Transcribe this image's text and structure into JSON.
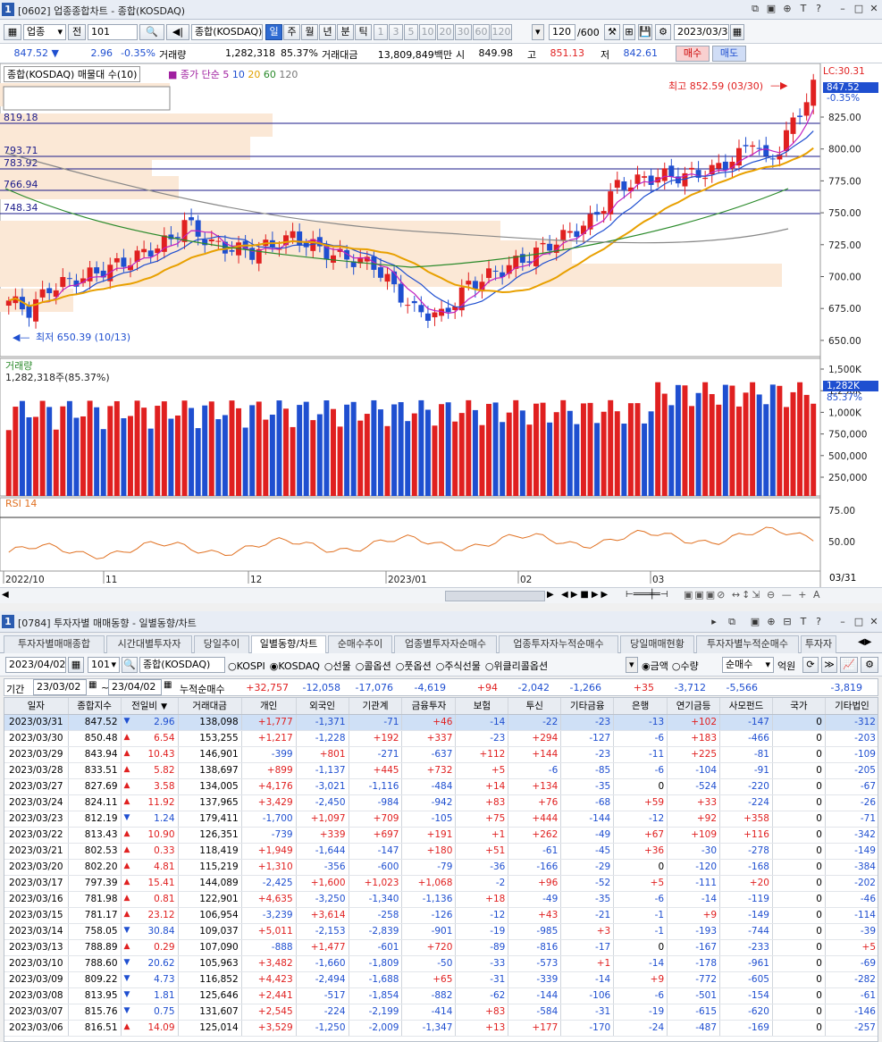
{
  "win1": {
    "num": "1",
    "title": "[0602] 업종종합차트 - 종합(KOSDAQ)"
  },
  "toolbar1": {
    "market": "업종",
    "all": "전",
    "code": "101",
    "name": "종합(KOSDAQ)",
    "periods": [
      "일",
      "주",
      "월",
      "년",
      "분",
      "틱"
    ],
    "nums": [
      "1",
      "3",
      "5",
      "10",
      "20",
      "30",
      "60",
      "120"
    ],
    "count": "120",
    "max": "/600",
    "date": "2023/03/31"
  },
  "quote": {
    "price": "847.52",
    "arrow": "▼",
    "change": "2.96",
    "pct": "-0.35%",
    "vol_label": "거래량",
    "volume": "1,282,318",
    "vol_pct": "85.37%",
    "amt_label": "거래대금",
    "amount": "13,809,849백만",
    "open_label": "시",
    "open": "849.98",
    "high_label": "고",
    "high": "851.13",
    "low_label": "저",
    "low": "842.61",
    "buy": "매수",
    "sell": "매도"
  },
  "chart": {
    "legend_main": "종합(KOSDAQ) 매물대 수(10)",
    "legend_ma": "종가 단순",
    "ma": [
      "5",
      "10",
      "20",
      "60",
      "120"
    ],
    "high_note": "최고 852.59 (03/30)",
    "low_note": "최저 650.39 (10/13)",
    "lc": "LC:30.31",
    "hc": "HC:5.58",
    "cur": "847.52",
    "cur_pct": "-0.35%",
    "levels": [
      "819.18",
      "793.71",
      "783.92",
      "766.94",
      "748.34"
    ],
    "yticks": [
      "825.00",
      "800.00",
      "775.00",
      "750.00",
      "725.00",
      "700.00",
      "675.00",
      "650.00"
    ],
    "vol_legend": "거래량",
    "vol_info": "1,282,318주(85.37%)",
    "vol_ticks": [
      "1,500K",
      "1,250K",
      "1,000K",
      "750,000",
      "500,000",
      "250,000"
    ],
    "vol_cur": "1,282K",
    "vol_pct": "85.37%",
    "rsi_legend": "RSI 14",
    "rsi_ticks": [
      "75.00",
      "50.00"
    ],
    "xlabels": [
      "2022/10",
      "11",
      "12",
      "2023/01",
      "02",
      "03"
    ],
    "xlast": "03/31"
  },
  "win2": {
    "num": "1",
    "title": "[0784] 투자자별 매매동향 - 일별동향/차트"
  },
  "tabs": [
    "투자자별매매종합",
    "시간대별투자자",
    "당일추이",
    "일별동향/차트",
    "순매수추이",
    "업종별투자자순매수",
    "업종투자자누적순매수",
    "당일매매현황",
    "투자자별누적순매수",
    "투자자"
  ],
  "filter": {
    "date": "2023/04/02",
    "code": "101",
    "name": "종합(KOSDAQ)",
    "markets": [
      "KOSPI",
      "KOSDAQ",
      "선물",
      "콜옵션",
      "풋옵션",
      "주식선물",
      "위클리콜옵션"
    ],
    "units": [
      "금액",
      "수량"
    ],
    "mode": "순매수",
    "unit": "억원"
  },
  "period": {
    "label": "기간",
    "from": "23/03/02",
    "to": "23/04/02",
    "sum_label": "누적순매수",
    "sums": [
      "+32,757",
      "-12,058",
      "-17,076",
      "-4,619",
      "+94",
      "-2,042",
      "-1,266",
      "+35",
      "-3,712",
      "-5,566",
      "",
      "-3,819"
    ]
  },
  "columns": [
    "일자",
    "종합지수",
    "전일비",
    "거래대금",
    "개인",
    "외국인",
    "기관계",
    "금융투자",
    "보험",
    "투신",
    "기타금융",
    "은행",
    "연기금등",
    "사모펀드",
    "국가",
    "기타법인"
  ],
  "rows": [
    [
      "2023/03/31",
      "847.52",
      "dn",
      "2.96",
      "138,098",
      "+1,777",
      "-1,371",
      "-71",
      "+46",
      "-14",
      "-22",
      "-23",
      "-13",
      "+102",
      "-147",
      "0",
      "-312"
    ],
    [
      "2023/03/30",
      "850.48",
      "up",
      "6.54",
      "153,255",
      "+1,217",
      "-1,228",
      "+192",
      "+337",
      "-23",
      "+294",
      "-127",
      "-6",
      "+183",
      "-466",
      "0",
      "-203"
    ],
    [
      "2023/03/29",
      "843.94",
      "up",
      "10.43",
      "146,901",
      "-399",
      "+801",
      "-271",
      "-637",
      "+112",
      "+144",
      "-23",
      "-11",
      "+225",
      "-81",
      "0",
      "-109"
    ],
    [
      "2023/03/28",
      "833.51",
      "up",
      "5.82",
      "138,697",
      "+899",
      "-1,137",
      "+445",
      "+732",
      "+5",
      "-6",
      "-85",
      "-6",
      "-104",
      "-91",
      "0",
      "-205"
    ],
    [
      "2023/03/27",
      "827.69",
      "up",
      "3.58",
      "134,005",
      "+4,176",
      "-3,021",
      "-1,116",
      "-484",
      "+14",
      "+134",
      "-35",
      "0",
      "-524",
      "-220",
      "0",
      "-67"
    ],
    [
      "2023/03/24",
      "824.11",
      "up",
      "11.92",
      "137,965",
      "+3,429",
      "-2,450",
      "-984",
      "-942",
      "+83",
      "+76",
      "-68",
      "+59",
      "+33",
      "-224",
      "0",
      "-26"
    ],
    [
      "2023/03/23",
      "812.19",
      "dn",
      "1.24",
      "179,411",
      "-1,700",
      "+1,097",
      "+709",
      "-105",
      "+75",
      "+444",
      "-144",
      "-12",
      "+92",
      "+358",
      "0",
      "-71"
    ],
    [
      "2023/03/22",
      "813.43",
      "up",
      "10.90",
      "126,351",
      "-739",
      "+339",
      "+697",
      "+191",
      "+1",
      "+262",
      "-49",
      "+67",
      "+109",
      "+116",
      "0",
      "-342"
    ],
    [
      "2023/03/21",
      "802.53",
      "up",
      "0.33",
      "118,419",
      "+1,949",
      "-1,644",
      "-147",
      "+180",
      "+51",
      "-61",
      "-45",
      "+36",
      "-30",
      "-278",
      "0",
      "-149"
    ],
    [
      "2023/03/20",
      "802.20",
      "up",
      "4.81",
      "115,219",
      "+1,310",
      "-356",
      "-600",
      "-79",
      "-36",
      "-166",
      "-29",
      "0",
      "-120",
      "-168",
      "0",
      "-384"
    ],
    [
      "2023/03/17",
      "797.39",
      "up",
      "15.41",
      "144,089",
      "-2,425",
      "+1,600",
      "+1,023",
      "+1,068",
      "-2",
      "+96",
      "-52",
      "+5",
      "-111",
      "+20",
      "0",
      "-202"
    ],
    [
      "2023/03/16",
      "781.98",
      "up",
      "0.81",
      "122,901",
      "+4,635",
      "-3,250",
      "-1,340",
      "-1,136",
      "+18",
      "-49",
      "-35",
      "-6",
      "-14",
      "-119",
      "0",
      "-46"
    ],
    [
      "2023/03/15",
      "781.17",
      "up",
      "23.12",
      "106,954",
      "-3,239",
      "+3,614",
      "-258",
      "-126",
      "-12",
      "+43",
      "-21",
      "-1",
      "+9",
      "-149",
      "0",
      "-114"
    ],
    [
      "2023/03/14",
      "758.05",
      "dn",
      "30.84",
      "109,037",
      "+5,011",
      "-2,153",
      "-2,839",
      "-901",
      "-19",
      "-985",
      "+3",
      "-1",
      "-193",
      "-744",
      "0",
      "-39"
    ],
    [
      "2023/03/13",
      "788.89",
      "up",
      "0.29",
      "107,090",
      "-888",
      "+1,477",
      "-601",
      "+720",
      "-89",
      "-816",
      "-17",
      "0",
      "-167",
      "-233",
      "0",
      "+5"
    ],
    [
      "2023/03/10",
      "788.60",
      "dn",
      "20.62",
      "105,963",
      "+3,482",
      "-1,660",
      "-1,809",
      "-50",
      "-33",
      "-573",
      "+1",
      "-14",
      "-178",
      "-961",
      "0",
      "-69"
    ],
    [
      "2023/03/09",
      "809.22",
      "dn",
      "4.73",
      "116,852",
      "+4,423",
      "-2,494",
      "-1,688",
      "+65",
      "-31",
      "-339",
      "-14",
      "+9",
      "-772",
      "-605",
      "0",
      "-282"
    ],
    [
      "2023/03/08",
      "813.95",
      "dn",
      "1.81",
      "125,646",
      "+2,441",
      "-517",
      "-1,854",
      "-882",
      "-62",
      "-144",
      "-106",
      "-6",
      "-501",
      "-154",
      "0",
      "-61"
    ],
    [
      "2023/03/07",
      "815.76",
      "dn",
      "0.75",
      "131,607",
      "+2,545",
      "-224",
      "-2,199",
      "-414",
      "+83",
      "-584",
      "-31",
      "-19",
      "-615",
      "-620",
      "0",
      "-146"
    ],
    [
      "2023/03/06",
      "816.51",
      "up",
      "14.09",
      "125,014",
      "+3,529",
      "-1,250",
      "-2,009",
      "-1,347",
      "+13",
      "+177",
      "-170",
      "-24",
      "-487",
      "-169",
      "0",
      "-257"
    ]
  ]
}
